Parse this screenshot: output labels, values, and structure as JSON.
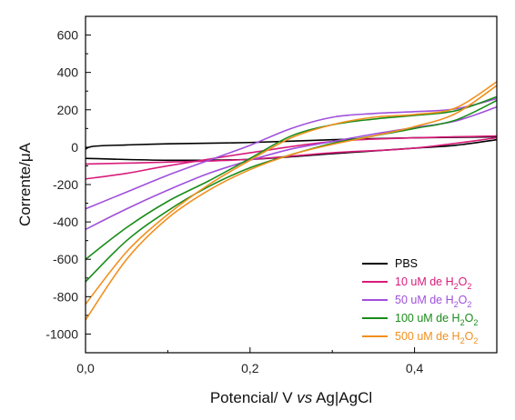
{
  "chart_data": {
    "type": "line",
    "xlabel": "Potencial/ V vs Ag|AgCl",
    "xlabel_parts": {
      "prefix": "Potencial/ V ",
      "italic": "vs",
      "suffix": " Ag|AgCl"
    },
    "ylabel": "Corrente/μA",
    "xlim": [
      0.0,
      0.5
    ],
    "ylim": [
      -1100,
      700
    ],
    "x_ticks": [
      0.0,
      0.2,
      0.4
    ],
    "x_tick_labels": [
      "0,0",
      "0,2",
      "0,4"
    ],
    "y_ticks": [
      600,
      400,
      200,
      0,
      -200,
      -400,
      -600,
      -800,
      -1000
    ],
    "y_tick_labels": [
      "600",
      "400",
      "200",
      "0",
      "-200",
      "-400",
      "-600",
      "-800",
      "-1000"
    ],
    "grid": false,
    "legend_position": "bottom-right",
    "series": [
      {
        "name": "PBS",
        "legend": {
          "base": "PBS",
          "formula": false
        },
        "color": "#000000",
        "upper": {
          "x": [
            0.0,
            0.01,
            0.05,
            0.1,
            0.2,
            0.3,
            0.4,
            0.5
          ],
          "y": [
            -10,
            5,
            12,
            18,
            25,
            40,
            50,
            55
          ]
        },
        "lower": {
          "x": [
            0.0,
            0.1,
            0.2,
            0.3,
            0.4,
            0.45,
            0.5
          ],
          "y": [
            -60,
            -70,
            -65,
            -35,
            -5,
            10,
            40
          ]
        }
      },
      {
        "name": "10 uM de H2O2",
        "legend": {
          "base": "10 uM de H",
          "formula": true
        },
        "color": "#d81b7a",
        "upper": {
          "x": [
            0.0,
            0.05,
            0.1,
            0.2,
            0.3,
            0.4,
            0.5
          ],
          "y": [
            -170,
            -140,
            -100,
            -30,
            30,
            50,
            60
          ]
        },
        "lower": {
          "x": [
            0.0,
            0.1,
            0.2,
            0.3,
            0.4,
            0.5
          ],
          "y": [
            -90,
            -80,
            -65,
            -30,
            -5,
            50
          ]
        }
      },
      {
        "name": "50 uM de H2O2",
        "legend": {
          "base": "50 uM de H",
          "formula": true
        },
        "color": "#a04fdc",
        "upper": {
          "x": [
            0.0,
            0.05,
            0.1,
            0.15,
            0.2,
            0.25,
            0.3,
            0.35,
            0.4,
            0.45,
            0.5
          ],
          "y": [
            -330,
            -240,
            -150,
            -70,
            10,
            100,
            160,
            180,
            190,
            205,
            260
          ]
        },
        "lower": {
          "x": [
            0.0,
            0.05,
            0.1,
            0.15,
            0.2,
            0.25,
            0.3,
            0.35,
            0.4,
            0.45,
            0.5
          ],
          "y": [
            -440,
            -330,
            -230,
            -140,
            -70,
            -10,
            30,
            70,
            105,
            140,
            215
          ]
        }
      },
      {
        "name": "100 uM de H2O2",
        "legend": {
          "base": "100 uM de H",
          "formula": true
        },
        "color": "#1a8c1a",
        "upper": {
          "x": [
            0.0,
            0.05,
            0.1,
            0.15,
            0.2,
            0.25,
            0.3,
            0.35,
            0.4,
            0.45,
            0.5
          ],
          "y": [
            -600,
            -430,
            -290,
            -180,
            -60,
            60,
            120,
            150,
            170,
            195,
            270
          ]
        },
        "lower": {
          "x": [
            0.0,
            0.05,
            0.1,
            0.15,
            0.2,
            0.25,
            0.3,
            0.35,
            0.4,
            0.45,
            0.5
          ],
          "y": [
            -720,
            -500,
            -340,
            -210,
            -110,
            -40,
            20,
            60,
            100,
            145,
            250
          ]
        }
      },
      {
        "name": "500 uM de H2O2",
        "legend": {
          "base": "500 uM de H",
          "formula": true
        },
        "color": "#f0901e",
        "upper": {
          "x": [
            0.0,
            0.05,
            0.1,
            0.15,
            0.2,
            0.25,
            0.3,
            0.35,
            0.4,
            0.45,
            0.5
          ],
          "y": [
            -840,
            -560,
            -360,
            -200,
            -70,
            50,
            120,
            160,
            175,
            210,
            350
          ]
        },
        "lower": {
          "x": [
            0.0,
            0.05,
            0.1,
            0.15,
            0.2,
            0.25,
            0.3,
            0.35,
            0.4,
            0.45,
            0.5
          ],
          "y": [
            -925,
            -600,
            -380,
            -230,
            -120,
            -40,
            15,
            60,
            110,
            180,
            330
          ]
        }
      }
    ]
  }
}
